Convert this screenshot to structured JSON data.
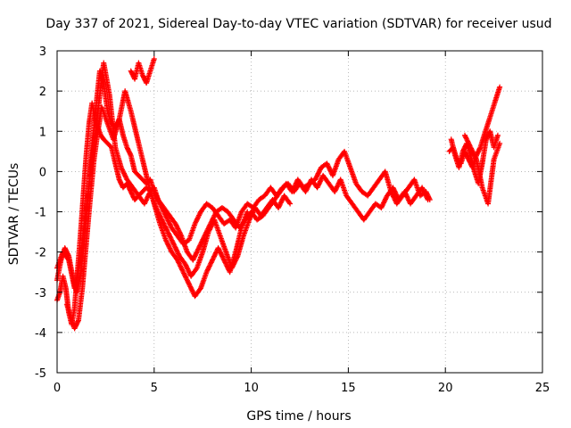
{
  "chart_data": {
    "type": "scatter",
    "title": "Day 337 of 2021, Sidereal Day-to-day VTEC variation (SDTVAR) for receiver usud",
    "xlabel": "GPS time / hours",
    "ylabel": "SDTVAR / TECUs",
    "xlim": [
      0,
      25
    ],
    "ylim": [
      -5,
      3
    ],
    "x_ticks": [
      0,
      5,
      10,
      15,
      20,
      25
    ],
    "y_ticks": [
      -5,
      -4,
      -3,
      -2,
      -1,
      0,
      1,
      2,
      3
    ],
    "x_tick_labels": [
      "0",
      "5",
      "10",
      "15",
      "20",
      "25"
    ],
    "y_tick_labels": [
      "-5",
      "-4",
      "-3",
      "-2",
      "-1",
      "0",
      "1",
      "2",
      "3"
    ],
    "grid": true,
    "marker": "plus",
    "series_color": "#ff0000",
    "series": [
      {
        "name": "trace-1",
        "x": [
          0.0,
          0.15,
          0.3,
          0.45,
          0.6,
          0.75,
          0.9,
          1.05,
          1.2,
          1.35,
          1.5,
          1.65,
          1.8,
          1.95,
          2.1,
          2.25,
          2.4,
          2.6,
          2.8,
          3.0,
          3.2,
          3.4,
          3.6,
          3.8,
          4.0,
          4.2,
          4.4,
          4.6,
          4.8,
          5.0,
          5.2,
          5.5,
          5.8,
          6.1,
          6.4,
          6.7,
          7.0,
          7.3,
          7.6,
          7.9,
          8.2,
          8.5,
          8.8,
          9.1,
          9.4,
          9.7,
          10.0,
          10.3,
          10.6,
          10.9,
          11.2,
          11.5,
          11.8,
          12.1,
          12.4,
          12.7,
          13.0,
          13.3,
          13.6,
          13.9,
          14.2,
          14.5,
          14.8,
          15.1,
          15.4,
          15.7,
          16.0,
          16.3,
          16.6,
          16.9,
          17.2,
          17.5,
          17.8,
          18.1,
          18.4,
          18.7,
          19.0,
          19.2
        ],
        "y": [
          -3.2,
          -3.0,
          -2.6,
          -2.9,
          -3.5,
          -3.8,
          -3.4,
          -2.5,
          -1.6,
          -0.6,
          0.4,
          1.2,
          1.7,
          1.3,
          1.1,
          0.9,
          0.8,
          0.7,
          0.6,
          0.2,
          -0.2,
          -0.4,
          -0.3,
          -0.5,
          -0.7,
          -0.6,
          -0.5,
          -0.4,
          -0.5,
          -0.4,
          -0.7,
          -0.9,
          -1.1,
          -1.3,
          -1.6,
          -2.0,
          -2.2,
          -1.9,
          -1.6,
          -1.3,
          -1.0,
          -0.9,
          -1.0,
          -1.2,
          -1.4,
          -1.2,
          -1.0,
          -1.2,
          -1.1,
          -0.9,
          -0.7,
          -0.5,
          -0.3,
          -0.5,
          -0.2,
          -0.4,
          -0.3,
          -0.2,
          0.1,
          0.2,
          -0.1,
          0.3,
          0.5,
          0.1,
          -0.3,
          -0.5,
          -0.6,
          -0.4,
          -0.2,
          0.0,
          -0.5,
          -0.8,
          -0.6,
          -0.4,
          -0.2,
          -0.6,
          -0.5,
          -0.7
        ]
      },
      {
        "name": "trace-2",
        "x": [
          0.0,
          0.2,
          0.4,
          0.6,
          0.8,
          1.0,
          1.2,
          1.4,
          1.6,
          1.8,
          2.0,
          2.2,
          2.4,
          2.6,
          2.8,
          3.0,
          3.2,
          3.4,
          3.6,
          3.8,
          4.0,
          4.2,
          4.4,
          4.6,
          4.8,
          5.0,
          5.3,
          5.6,
          5.9,
          6.2,
          6.5,
          6.8,
          7.1,
          7.4,
          7.7,
          8.0,
          8.3,
          8.6,
          8.9,
          9.2,
          9.5,
          9.8,
          10.1,
          10.4,
          10.7,
          11.0,
          11.3,
          11.6,
          11.9,
          12.2,
          12.5,
          12.8,
          13.1,
          13.4,
          13.7,
          14.0,
          14.3,
          14.6,
          14.9,
          15.2,
          15.5,
          15.8,
          16.1,
          16.4,
          16.7,
          17.0,
          17.3,
          17.6,
          17.9,
          18.2,
          18.5,
          18.8,
          19.1
        ],
        "y": [
          -2.7,
          -2.2,
          -1.9,
          -2.1,
          -2.6,
          -3.0,
          -2.6,
          -1.7,
          -0.6,
          0.6,
          1.6,
          2.5,
          2.2,
          1.5,
          1.2,
          1.1,
          1.3,
          0.9,
          0.6,
          0.4,
          0.0,
          -0.1,
          -0.2,
          -0.3,
          -0.2,
          -0.5,
          -0.8,
          -1.1,
          -1.4,
          -1.6,
          -1.8,
          -1.7,
          -1.3,
          -1.0,
          -0.8,
          -0.9,
          -1.1,
          -1.3,
          -1.2,
          -1.4,
          -1.0,
          -0.8,
          -0.9,
          -0.7,
          -0.6,
          -0.4,
          -0.6,
          -0.4,
          -0.3,
          -0.5,
          -0.3,
          -0.5,
          -0.2,
          -0.4,
          -0.1,
          -0.3,
          -0.5,
          -0.2,
          -0.6,
          -0.8,
          -1.0,
          -1.2,
          -1.0,
          -0.8,
          -0.9,
          -0.6,
          -0.4,
          -0.7,
          -0.5,
          -0.8,
          -0.6,
          -0.4,
          -0.7
        ]
      },
      {
        "name": "trace-3",
        "x": [
          0.0,
          0.3,
          0.6,
          0.9,
          1.2,
          1.5,
          1.8,
          2.1,
          2.4,
          2.7,
          3.0,
          3.3,
          3.6,
          3.9,
          4.2,
          4.5,
          4.8,
          5.1,
          5.4,
          5.7,
          6.0,
          6.3,
          6.6,
          6.9,
          7.2,
          7.5,
          7.8,
          8.1,
          8.4,
          8.7,
          9.0,
          9.3,
          9.6,
          9.9,
          10.2,
          10.5,
          10.8,
          11.1,
          11.4,
          11.7,
          12.0
        ],
        "y": [
          -2.4,
          -2.0,
          -2.2,
          -2.9,
          -2.2,
          -0.9,
          0.3,
          1.5,
          2.7,
          1.9,
          0.6,
          0.1,
          -0.2,
          -0.4,
          -0.6,
          -0.8,
          -0.5,
          -0.9,
          -1.2,
          -1.5,
          -1.8,
          -2.1,
          -2.3,
          -2.6,
          -2.4,
          -2.0,
          -1.5,
          -1.2,
          -1.6,
          -2.0,
          -2.4,
          -2.1,
          -1.6,
          -1.2,
          -0.9,
          -1.1,
          -0.9,
          -0.7,
          -0.9,
          -0.6,
          -0.8
        ]
      },
      {
        "name": "trace-4",
        "x": [
          0.5,
          0.7,
          0.9,
          1.1,
          1.3,
          1.5,
          1.7,
          1.9,
          2.1,
          2.3,
          2.6,
          2.9,
          3.2,
          3.5,
          3.8,
          4.1,
          4.4,
          4.7,
          5.0,
          5.3,
          5.6,
          5.9,
          6.2,
          6.5,
          6.8,
          7.1,
          7.4,
          7.7,
          8.0,
          8.3,
          8.6,
          8.9,
          9.2,
          9.5,
          9.8
        ],
        "y": [
          -3.3,
          -3.6,
          -3.9,
          -3.7,
          -2.9,
          -1.8,
          -0.7,
          0.3,
          1.0,
          1.6,
          1.2,
          0.8,
          1.3,
          2.0,
          1.5,
          0.9,
          0.3,
          -0.3,
          -0.8,
          -1.3,
          -1.7,
          -2.0,
          -2.2,
          -2.5,
          -2.8,
          -3.1,
          -2.9,
          -2.5,
          -2.2,
          -1.9,
          -2.2,
          -2.5,
          -2.0,
          -1.4,
          -1.0
        ]
      },
      {
        "name": "trace-5",
        "x": [
          3.8,
          4.0,
          4.2,
          4.4,
          4.6,
          4.8,
          5.0
        ],
        "y": [
          2.5,
          2.3,
          2.7,
          2.4,
          2.2,
          2.5,
          2.8
        ]
      },
      {
        "name": "trace-6",
        "x": [
          20.2,
          20.4,
          20.6,
          20.8,
          21.0,
          21.2,
          21.4,
          21.6,
          21.8,
          22.0,
          22.2,
          22.4,
          22.6,
          22.8
        ],
        "y": [
          0.5,
          0.6,
          0.3,
          0.2,
          0.5,
          0.3,
          0.1,
          0.4,
          0.6,
          0.9,
          1.2,
          1.5,
          1.8,
          2.1
        ]
      },
      {
        "name": "trace-7",
        "x": [
          20.3,
          20.5,
          20.7,
          20.9,
          21.1,
          21.3,
          21.5,
          21.7,
          21.9,
          22.1,
          22.3,
          22.5,
          22.7
        ],
        "y": [
          0.8,
          0.4,
          0.1,
          0.5,
          0.7,
          0.4,
          0.0,
          -0.3,
          0.2,
          0.8,
          1.0,
          0.6,
          0.9
        ]
      },
      {
        "name": "trace-8",
        "x": [
          21.0,
          21.3,
          21.6,
          21.9,
          22.2,
          22.5,
          22.8
        ],
        "y": [
          0.9,
          0.6,
          0.3,
          -0.4,
          -0.8,
          0.3,
          0.7
        ]
      }
    ]
  }
}
